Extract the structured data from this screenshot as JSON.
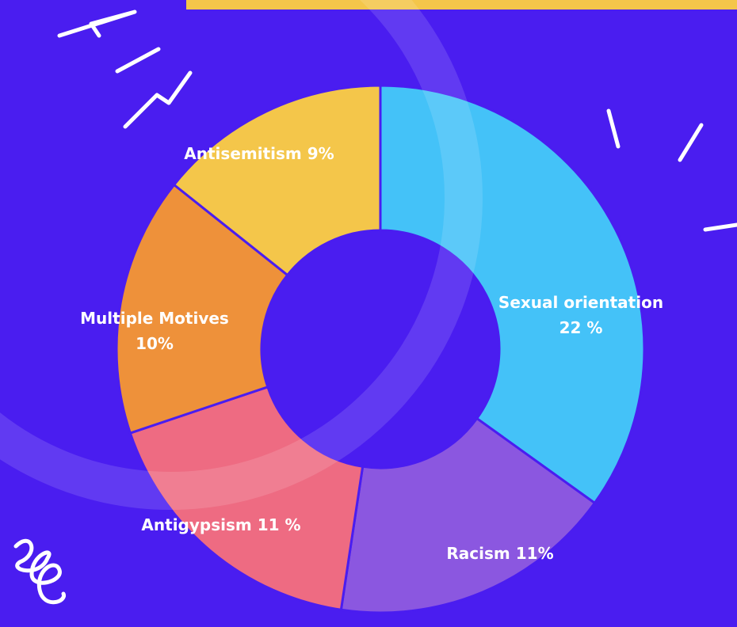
{
  "chart_data": {
    "type": "donut",
    "categories": [
      "Sexual orientation",
      "Racism",
      "Antigypsism",
      "Multiple Motives",
      "Antisemitism"
    ],
    "values": [
      22,
      11,
      11,
      10,
      9
    ],
    "value_labels": [
      "22 %",
      "11%",
      "11 %",
      "10%",
      "9%"
    ],
    "colors": [
      "#44c2f8",
      "#8b57e0",
      "#ee6b82",
      "#ee913a",
      "#f4c64a"
    ]
  }
}
